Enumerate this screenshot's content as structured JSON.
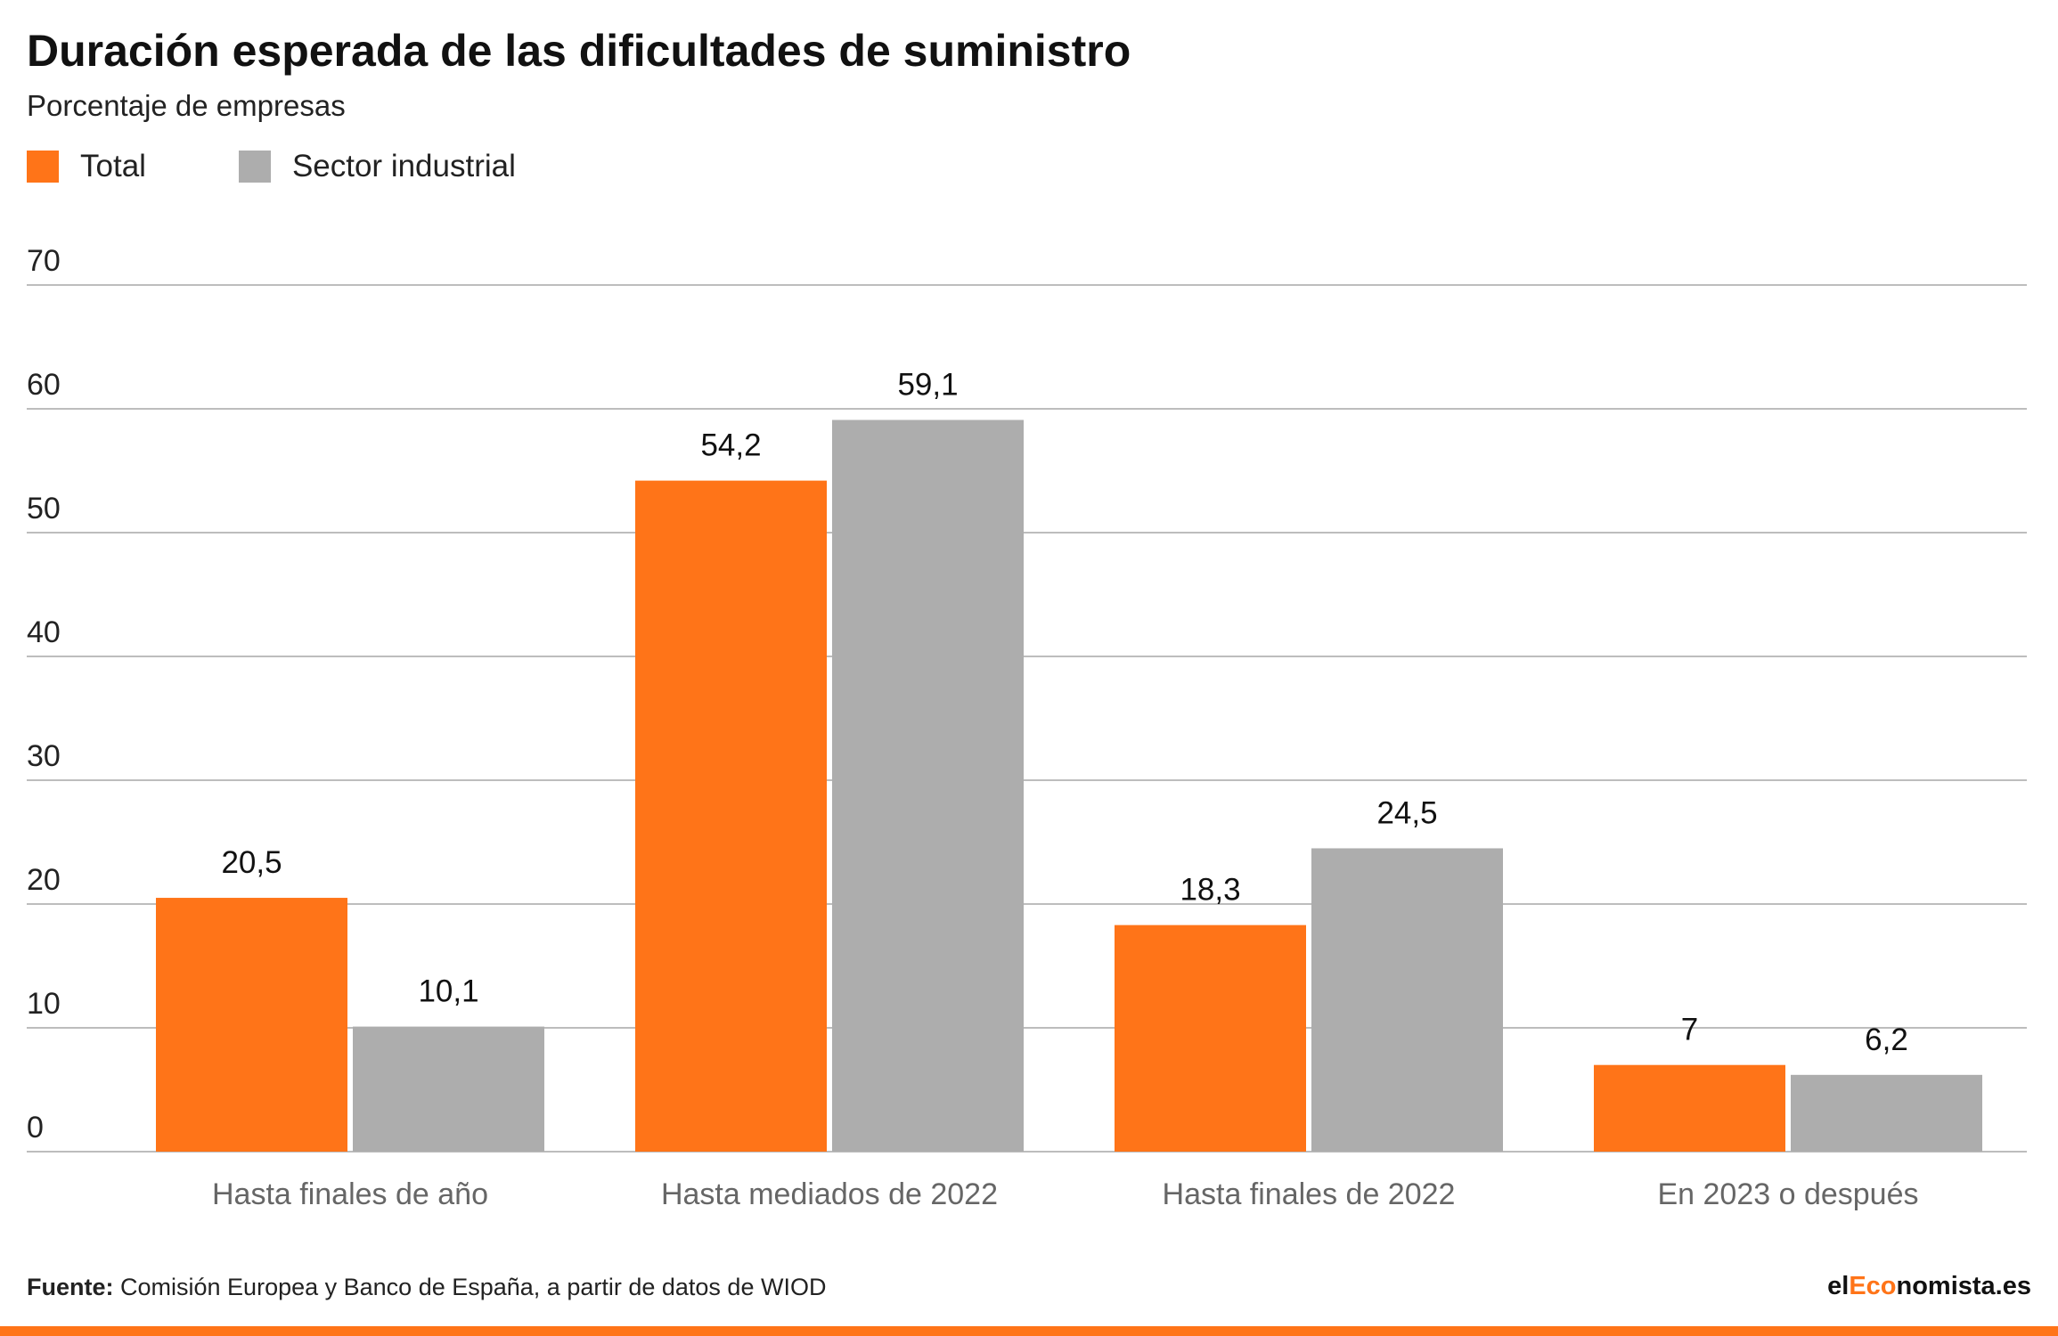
{
  "title": "Duración esperada de las dificultades de suministro",
  "subtitle": "Porcentaje de empresas",
  "colors": {
    "total": "#ff7418",
    "industrial": "#adadad",
    "grid": "#bdbdbd",
    "axis_text": "#222222",
    "category_text": "#666666"
  },
  "legend": [
    {
      "label": "Total",
      "color": "#ff7418"
    },
    {
      "label": "Sector industrial",
      "color": "#adadad"
    }
  ],
  "chart_data": {
    "type": "bar",
    "categories": [
      "Hasta finales de año",
      "Hasta mediados de 2022",
      "Hasta finales de 2022",
      "En 2023 o después"
    ],
    "series": [
      {
        "name": "Total",
        "values": [
          20.5,
          54.2,
          18.3,
          7
        ],
        "labels": [
          "20,5",
          "54,2",
          "18,3",
          "7"
        ]
      },
      {
        "name": "Sector industrial",
        "values": [
          10.1,
          59.1,
          24.5,
          6.2
        ],
        "labels": [
          "10,1",
          "59,1",
          "24,5",
          "6,2"
        ]
      }
    ],
    "ylim": [
      0,
      70
    ],
    "yticks": [
      0,
      10,
      20,
      30,
      40,
      50,
      60,
      70
    ],
    "grid": true,
    "legend_position": "top-left"
  },
  "footer": {
    "source_prefix": "Fuente:",
    "source_text": "Comisión Europea y Banco de España, a partir de datos de WIOD",
    "brand_pre": "el",
    "brand_mid": "Eco",
    "brand_post": "nomista.es"
  }
}
